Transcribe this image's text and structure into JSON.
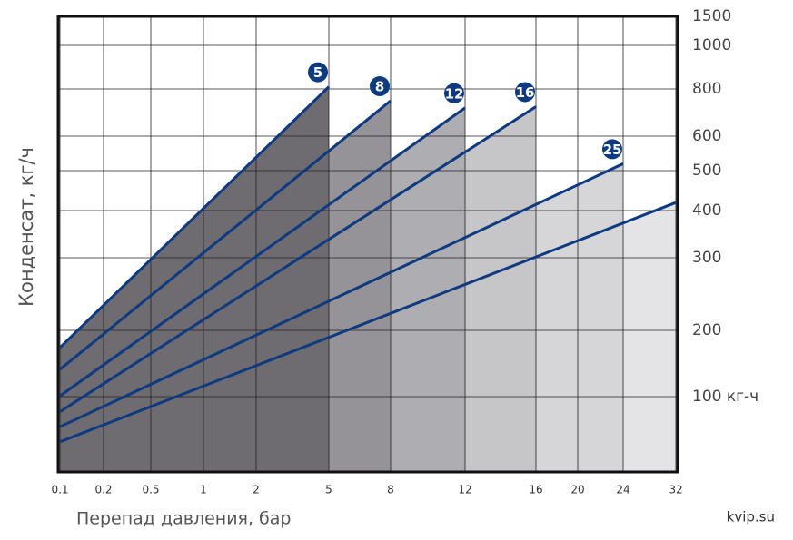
{
  "chart_data": {
    "type": "line",
    "x_label": "Перепад давления, бар",
    "y_label": "Конденсат, кг/ч",
    "source": "kvip.su",
    "xlim": [
      0.1,
      32
    ],
    "xticks": [
      0.1,
      0.2,
      0.5,
      1,
      2,
      5,
      8,
      12,
      16,
      20,
      24,
      32
    ],
    "ylim": [
      50,
      1500
    ],
    "yticks": [
      {
        "value": 100,
        "label": "100 кг-ч"
      },
      200,
      300,
      400,
      500,
      600,
      800,
      1000,
      1500
    ],
    "grid": true,
    "series": [
      {
        "name": "5",
        "color": "#0d3a80",
        "fill": "#6e6c70",
        "x": [
          0.1,
          5
        ],
        "values": [
          174,
          810
        ]
      },
      {
        "name": "8",
        "color": "#0d3a80",
        "fill": "#959397",
        "x": [
          0.1,
          8
        ],
        "values": [
          141,
          750
        ]
      },
      {
        "name": "12",
        "color": "#0d3a80",
        "fill": "#aeadb1",
        "x": [
          0.1,
          12
        ],
        "values": [
          101,
          720
        ]
      },
      {
        "name": "16",
        "color": "#0d3a80",
        "fill": "#c6c5c8",
        "x": [
          0.1,
          16
        ],
        "values": [
          90,
          725
        ]
      },
      {
        "name": "25",
        "color": "#0d3a80",
        "fill": "#d6d6d8",
        "x": [
          0.1,
          24
        ],
        "values": [
          80,
          520
        ]
      },
      {
        "color": "#0d3a80",
        "fill": "#e4e4e6",
        "x": [
          0.1,
          32
        ],
        "values": [
          70,
          420
        ]
      }
    ]
  }
}
